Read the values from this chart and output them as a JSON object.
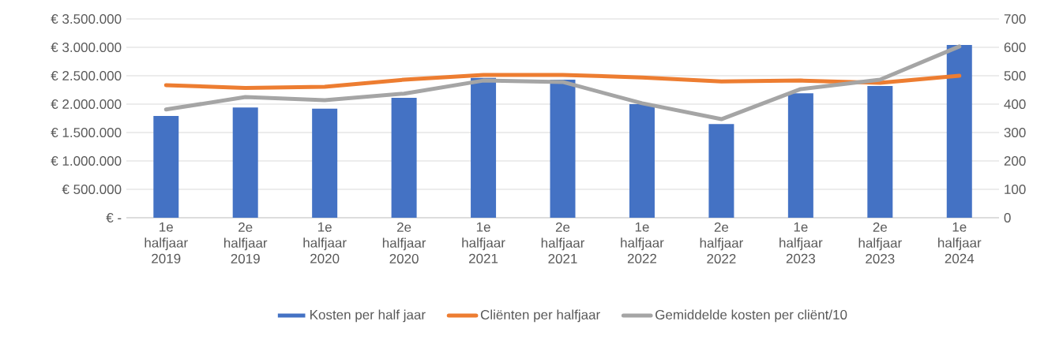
{
  "chart_data": {
    "type": "bar",
    "categories": [
      "1e halfjaar 2019",
      "2e halfjaar 2019",
      "1e halfjaar 2020",
      "2e halfjaar 2020",
      "1e halfjaar 2021",
      "2e halfjaar 2021",
      "1e halfjaar 2022",
      "2e halfjaar 2022",
      "1e halfjaar 2023",
      "2e halfjaar 2023",
      "1e halfjaar 2024"
    ],
    "series": [
      {
        "name": "Kosten per half jaar",
        "color": "#4472c4",
        "values": [
          1790000,
          1940000,
          1920000,
          2110000,
          2460000,
          2430000,
          2000000,
          1650000,
          2190000,
          2320000,
          3040000
        ]
      },
      {
        "name": "Cliënten per halfjaar",
        "type": "line",
        "axis": "y2",
        "color": "#ed7d31",
        "values": [
          467,
          457,
          461,
          486,
          503,
          503,
          494,
          480,
          483,
          475,
          500
        ]
      },
      {
        "name": "Gemiddelde kosten per cliënt/10",
        "type": "line",
        "axis": "y2",
        "color": "#a5a5a5",
        "values": [
          381,
          425,
          414,
          437,
          483,
          478,
          403,
          347,
          453,
          486,
          603
        ]
      }
    ],
    "ylim": [
      0,
      3500000
    ],
    "yticks": [
      {
        "value": 0,
        "label": "€ -"
      },
      {
        "value": 500000,
        "label": "€ 500.000"
      },
      {
        "value": 1000000,
        "label": "€ 1.000.000"
      },
      {
        "value": 1500000,
        "label": "€ 1.500.000"
      },
      {
        "value": 2000000,
        "label": "€ 2.000.000"
      },
      {
        "value": 2500000,
        "label": "€ 2.500.000"
      },
      {
        "value": 3000000,
        "label": "€ 3.000.000"
      },
      {
        "value": 3500000,
        "label": "€ 3.500.000"
      }
    ],
    "y2lim": [
      0,
      700
    ],
    "y2ticks": [
      0,
      100,
      200,
      300,
      400,
      500,
      600,
      700
    ],
    "grid": "y",
    "legend": "bottom",
    "marker": "none",
    "line_style": "solid"
  }
}
